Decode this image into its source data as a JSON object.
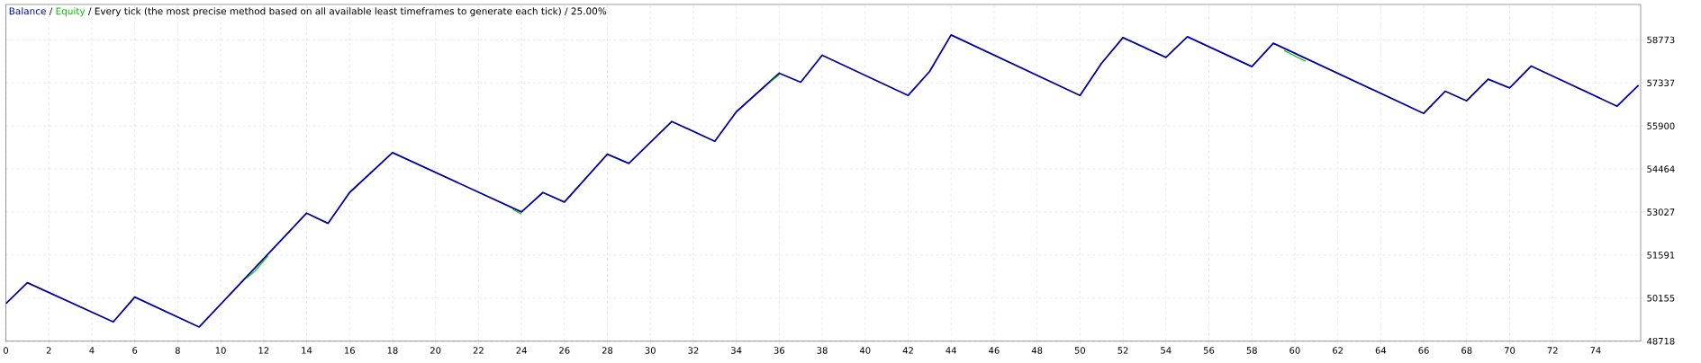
{
  "chart_data": {
    "type": "line",
    "title": "/ Every tick (the most precise method based on all available least timeframes to generate each tick) / 25.00%",
    "annotations": [
      "/"
    ],
    "series": [
      {
        "name": "Equity",
        "color": "#00c000",
        "x": [
          11.2,
          11.6,
          12.2,
          13,
          23.6,
          24,
          25,
          35.6,
          36,
          37,
          59.5,
          60.5
        ],
        "values": [
          50820,
          51060,
          51560,
          null,
          53120,
          52960,
          null,
          57380,
          57610,
          null,
          58420,
          58060
        ]
      },
      {
        "name": "Balance",
        "color": "#0000a0",
        "x": [
          0,
          1,
          5,
          6,
          9,
          14,
          15,
          16,
          18,
          24,
          25,
          26,
          28,
          29,
          31,
          33,
          34,
          36,
          37,
          38,
          42,
          43,
          44,
          50,
          51,
          52,
          54,
          55,
          58,
          59,
          66,
          67,
          68,
          69,
          70,
          71,
          75,
          76
        ],
        "values": [
          49970,
          50670,
          49360,
          50190,
          49190,
          52990,
          52650,
          53680,
          55010,
          53030,
          53680,
          53360,
          54960,
          54650,
          56050,
          55390,
          56370,
          57660,
          57360,
          58260,
          56920,
          57720,
          58940,
          56920,
          57990,
          58850,
          58190,
          58880,
          57880,
          58660,
          56320,
          57060,
          56740,
          57460,
          57170,
          57900,
          56560,
          57260
        ]
      }
    ],
    "xlim": [
      0,
      76.1
    ],
    "ylim": [
      48718,
      59955
    ],
    "xticks": [
      0,
      2,
      4,
      6,
      8,
      10,
      12,
      14,
      16,
      18,
      20,
      22,
      24,
      26,
      28,
      30,
      32,
      34,
      36,
      38,
      40,
      42,
      44,
      46,
      48,
      50,
      52,
      54,
      56,
      58,
      60,
      62,
      64,
      66,
      68,
      70,
      72,
      74
    ],
    "yticks": [
      48718,
      50155,
      51591,
      53027,
      54464,
      55900,
      57337,
      58773
    ],
    "grid": true,
    "legend": "top left",
    "marker": "none",
    "line_style": "solid"
  }
}
